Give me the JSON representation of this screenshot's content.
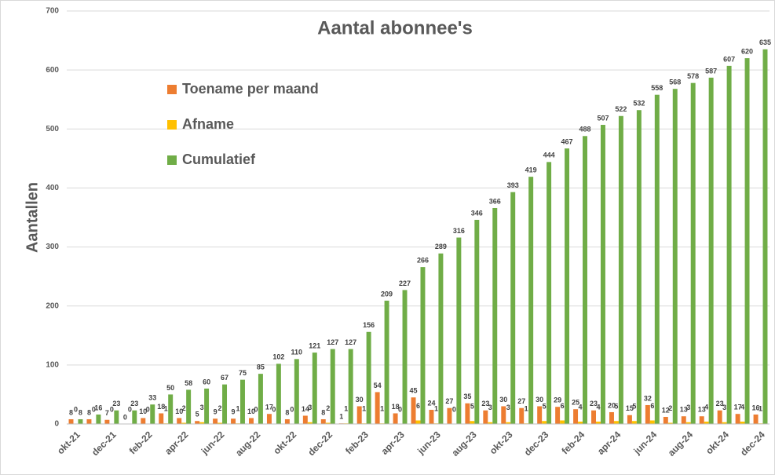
{
  "chart_data": {
    "type": "bar",
    "title": "Aantal abonnee's",
    "y_label": "Aantallen",
    "categories": [
      "okt-21",
      null,
      "dec-21",
      null,
      "feb-22",
      null,
      "apr-22",
      null,
      "jun-22",
      null,
      "aug-22",
      null,
      "okt-22",
      null,
      "dec-22",
      null,
      "feb-23",
      null,
      "apr-23",
      null,
      "jun-23",
      null,
      "aug-23",
      null,
      "okt-23",
      null,
      "dec-23",
      null,
      "feb-24",
      null,
      "apr-24",
      null,
      "jun-24",
      null,
      "aug-24",
      null,
      "okt-24",
      null,
      "dec-24"
    ],
    "series": [
      {
        "name": "Toename per maand",
        "color": "#ed7d31",
        "values": [
          8,
          8,
          7,
          0,
          10,
          18,
          10,
          5,
          9,
          9,
          10,
          17,
          8,
          14,
          8,
          1,
          30,
          54,
          18,
          45,
          24,
          27,
          35,
          23,
          30,
          27,
          30,
          29,
          25,
          23,
          20,
          15,
          32,
          12,
          13,
          13,
          23,
          17,
          16
        ]
      },
      {
        "name": "Afname",
        "color": "#ffc000",
        "values": [
          0,
          0,
          0,
          0,
          0,
          1,
          2,
          3,
          2,
          1,
          0,
          0,
          0,
          3,
          2,
          1,
          1,
          1,
          0,
          6,
          1,
          0,
          5,
          3,
          3,
          1,
          5,
          6,
          4,
          4,
          5,
          5,
          6,
          2,
          3,
          4,
          3,
          4,
          1
        ]
      },
      {
        "name": "Cumulatief",
        "color": "#70ad47",
        "values": [
          8,
          16,
          23,
          23,
          33,
          50,
          58,
          60,
          67,
          75,
          85,
          102,
          110,
          121,
          127,
          127,
          156,
          209,
          227,
          266,
          289,
          316,
          346,
          366,
          393,
          419,
          444,
          467,
          488,
          507,
          522,
          532,
          558,
          568,
          578,
          587,
          607,
          620,
          635
        ]
      }
    ],
    "ylim": [
      0,
      700
    ],
    "yticks": [
      0,
      100,
      200,
      300,
      400,
      500,
      600,
      700
    ],
    "grid": true,
    "legend": "upper left"
  }
}
